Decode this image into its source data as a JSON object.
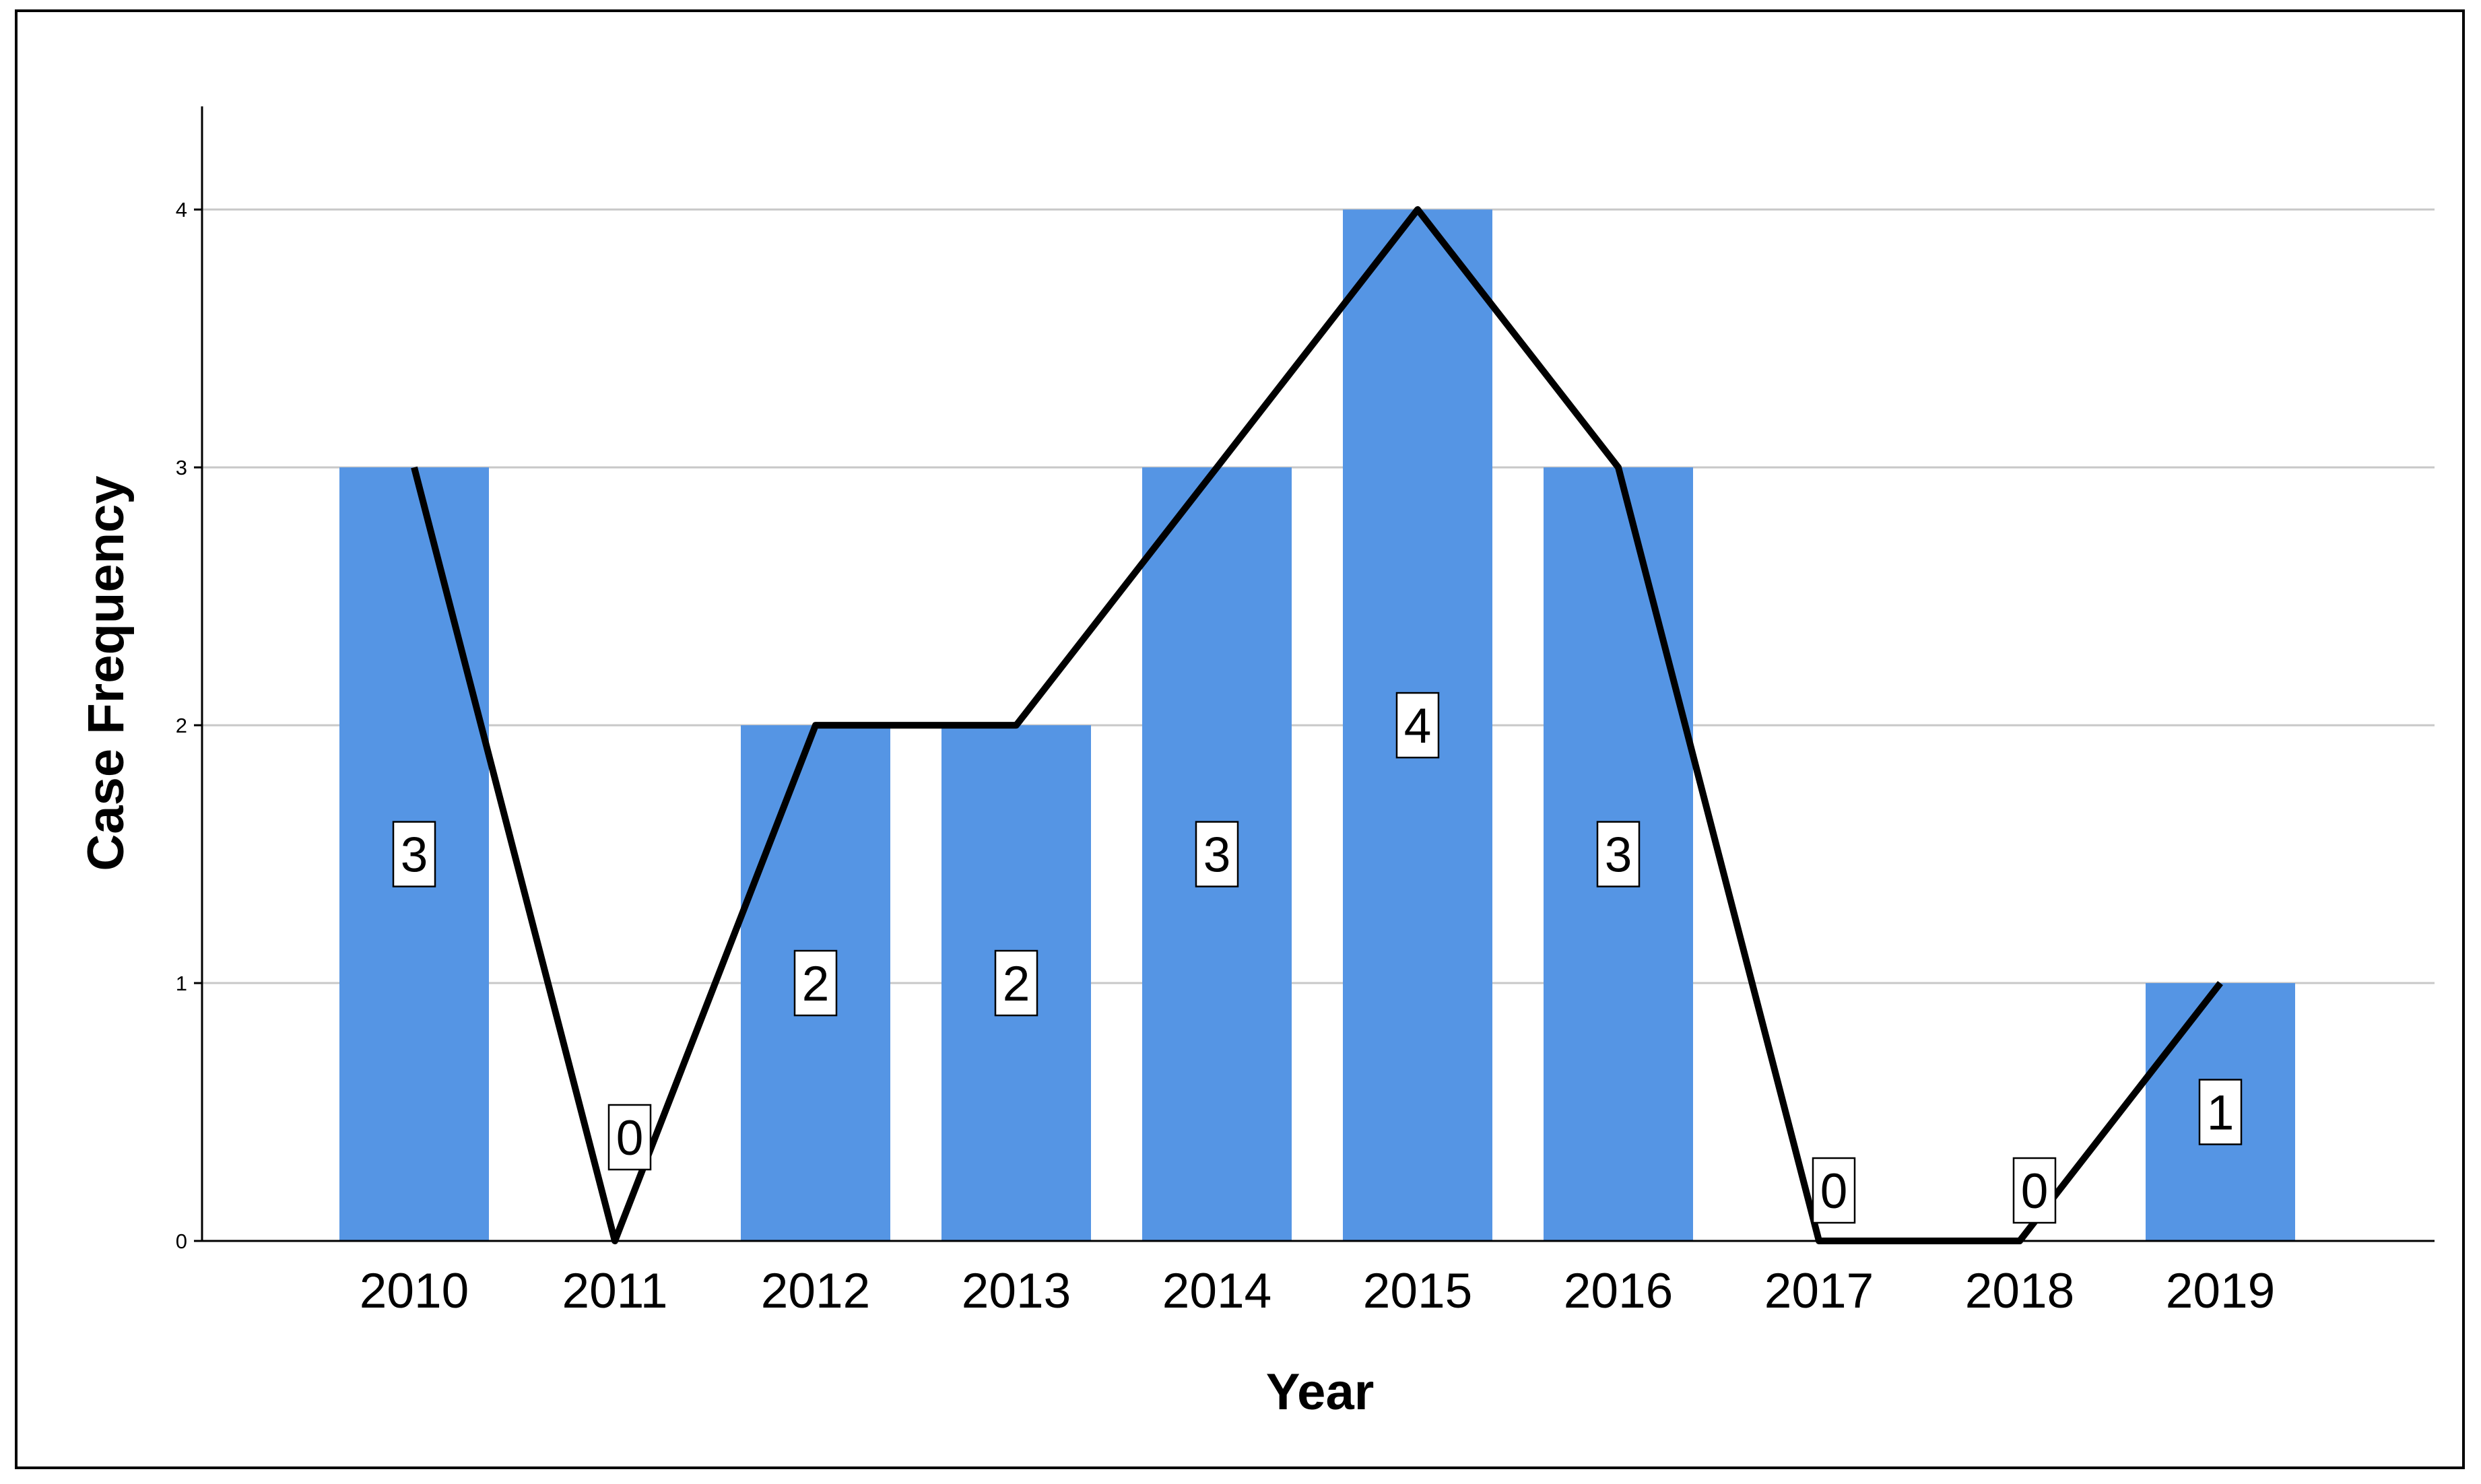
{
  "chart_data": {
    "type": "bar",
    "categories": [
      "2010",
      "2011",
      "2012",
      "2013",
      "2014",
      "2015",
      "2016",
      "2017",
      "2018",
      "2019"
    ],
    "values": [
      3,
      0,
      2,
      2,
      3,
      4,
      3,
      0,
      0,
      1
    ],
    "line_values": [
      3,
      0,
      2,
      2,
      3,
      4,
      3,
      0,
      0,
      1
    ],
    "data_labels": [
      "3",
      "0",
      "2",
      "2",
      "3",
      "4",
      "3",
      "0",
      "0",
      "1"
    ],
    "title": "",
    "xlabel": "Year",
    "ylabel": "Case Frequency",
    "ylim": [
      0,
      4.4
    ],
    "yticks": [
      "0",
      "1",
      "2",
      "3",
      "4"
    ],
    "grid": true,
    "colors": {
      "bar": "#5595e4",
      "line": "#000000",
      "grid": "#c8c8c8",
      "axis": "#000000"
    }
  }
}
